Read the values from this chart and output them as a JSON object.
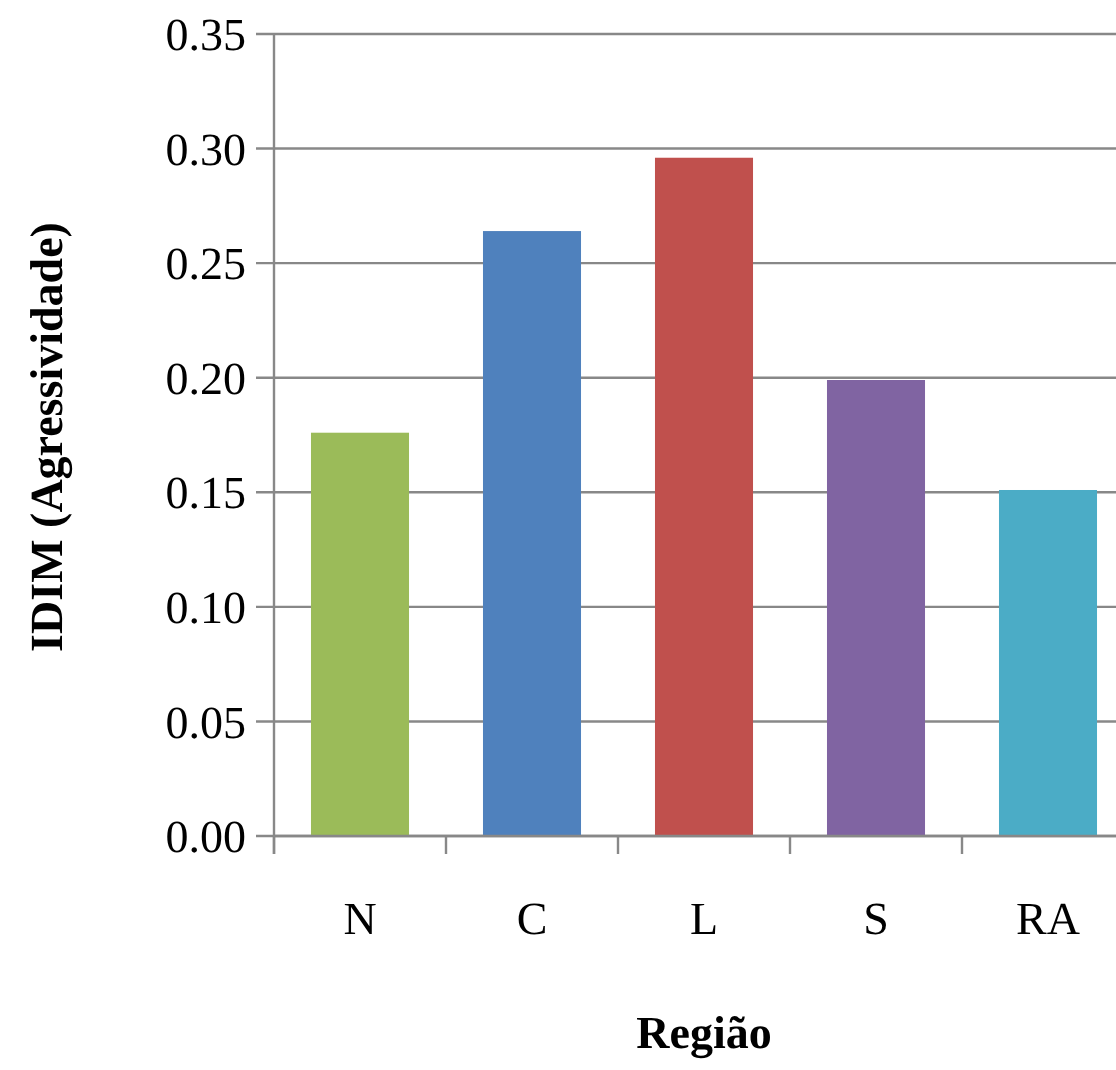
{
  "chart_data": {
    "type": "bar",
    "xlabel": "Região",
    "ylabel": "IDIM (Agressividade)",
    "categories": [
      "N",
      "C",
      "L",
      "S",
      "RA"
    ],
    "values": [
      0.176,
      0.264,
      0.296,
      0.199,
      0.151
    ],
    "colors": [
      "#9bbb59",
      "#4f81bd",
      "#c0504d",
      "#8064a2",
      "#4bacc6"
    ],
    "ylim": [
      0,
      0.35
    ],
    "yticks": [
      {
        "value": 0,
        "label": "0.00"
      },
      {
        "value": 0.05,
        "label": "0.05"
      },
      {
        "value": 0.1,
        "label": "0.10"
      },
      {
        "value": 0.15,
        "label": "0.15"
      },
      {
        "value": 0.2,
        "label": "0.20"
      },
      {
        "value": 0.25,
        "label": "0.25"
      },
      {
        "value": 0.3,
        "label": "0.30"
      },
      {
        "value": 0.35,
        "label": "0.35"
      }
    ],
    "grid": "y"
  }
}
